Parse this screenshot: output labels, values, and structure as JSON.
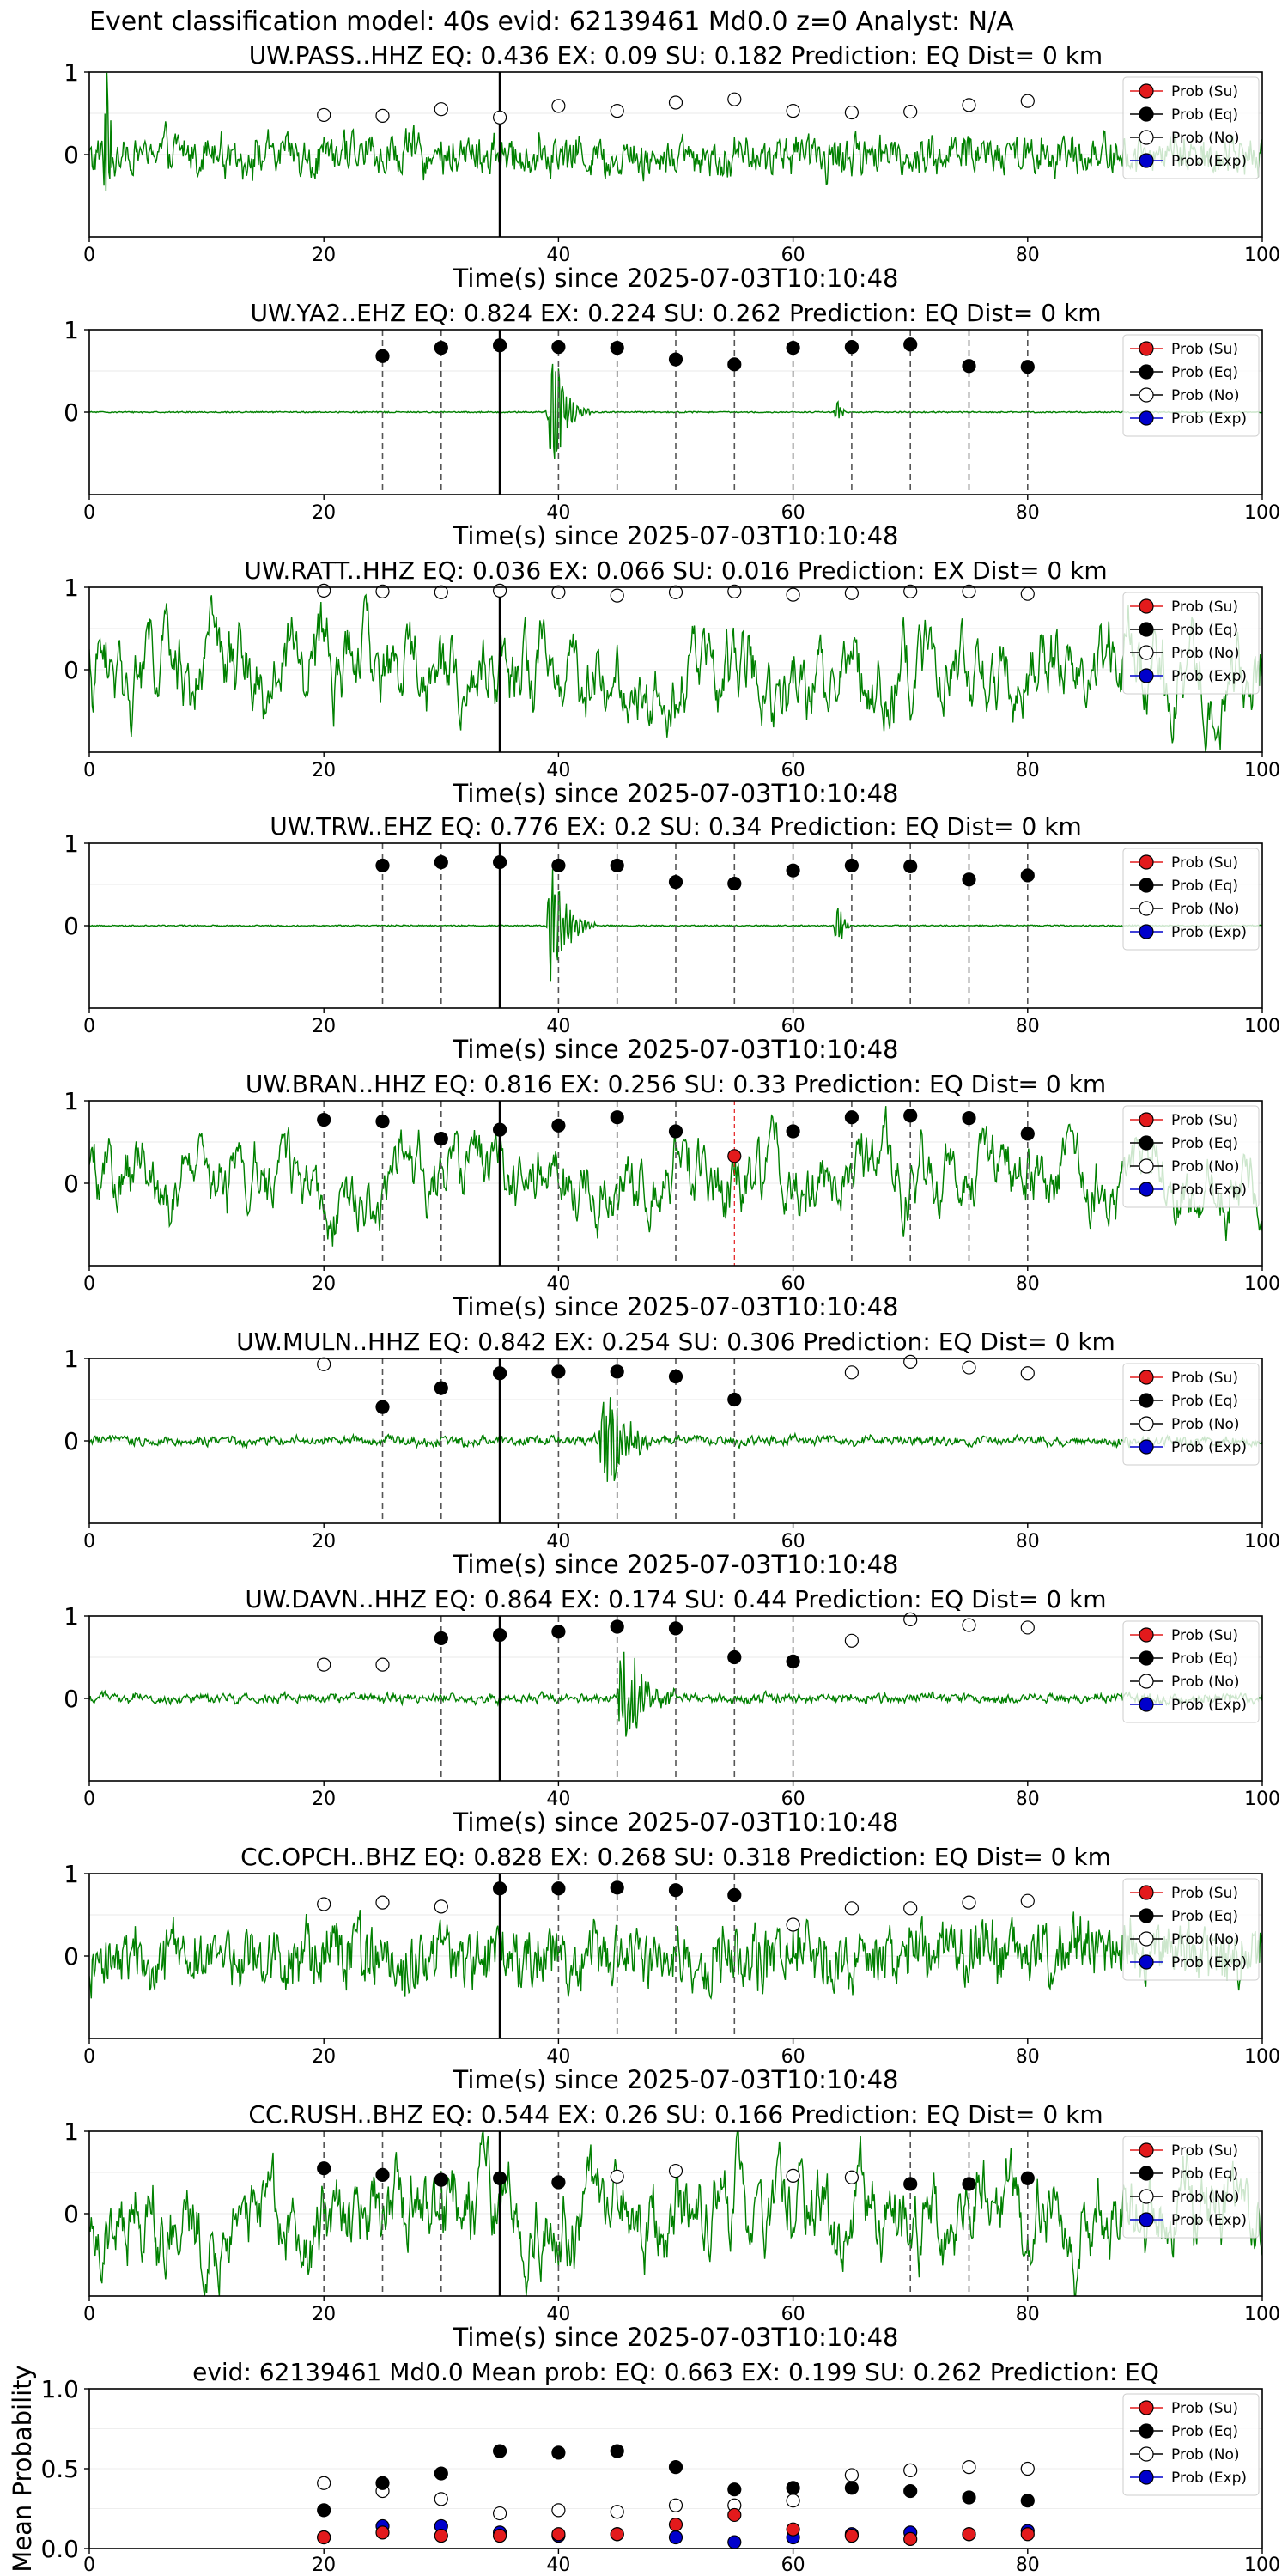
{
  "header": {
    "title": "Event classification model: 40s evid: 62139461 Md0.0 z=0 Analyst: N/A"
  },
  "legend": [
    "Prob (Su)",
    "Prob (Eq)",
    "Prob (No)",
    "Prob (Exp)"
  ],
  "colors": {
    "su": "#e31a1c",
    "eq": "#000000",
    "no": "#ffffff",
    "exp": "#0000cc",
    "waveform": "#008000",
    "cursor": "#000000",
    "window": "#555555"
  },
  "chart_data": [
    {
      "type": "line",
      "station": "UW.PASS..HHZ",
      "title": "UW.PASS..HHZ   EQ: 0.436  EX: 0.09  SU: 0.182   Prediction: EQ    Dist= 0 km",
      "xlabel": "Time(s) since 2025-07-03T10:10:48",
      "xlim": [
        0,
        100
      ],
      "ylim": [
        -1,
        1
      ],
      "xticks": [
        "0",
        "20",
        "40",
        "60",
        "80",
        "100"
      ],
      "yticks": [
        "1",
        "0"
      ],
      "cursor_x": 35,
      "window_lines": [],
      "su_lines": [],
      "waveform": {
        "amplitude": 0.42,
        "style": "noise",
        "spike_at": 1.5
      },
      "points": [
        {
          "x": 20,
          "y": 0.48,
          "cls": "no"
        },
        {
          "x": 25,
          "y": 0.47,
          "cls": "no"
        },
        {
          "x": 30,
          "y": 0.55,
          "cls": "no"
        },
        {
          "x": 35,
          "y": 0.45,
          "cls": "no"
        },
        {
          "x": 40,
          "y": 0.59,
          "cls": "no"
        },
        {
          "x": 45,
          "y": 0.53,
          "cls": "no"
        },
        {
          "x": 50,
          "y": 0.63,
          "cls": "no"
        },
        {
          "x": 55,
          "y": 0.67,
          "cls": "no"
        },
        {
          "x": 60,
          "y": 0.53,
          "cls": "no"
        },
        {
          "x": 65,
          "y": 0.51,
          "cls": "no"
        },
        {
          "x": 70,
          "y": 0.52,
          "cls": "no"
        },
        {
          "x": 75,
          "y": 0.6,
          "cls": "no"
        },
        {
          "x": 80,
          "y": 0.65,
          "cls": "no"
        }
      ]
    },
    {
      "type": "line",
      "station": "UW.YA2..EHZ",
      "title": "UW.YA2..EHZ   EQ: 0.824  EX: 0.224  SU: 0.262   Prediction: EQ    Dist= 0 km",
      "xlabel": "Time(s) since 2025-07-03T10:10:48",
      "xlim": [
        0,
        100
      ],
      "ylim": [
        -1,
        1
      ],
      "xticks": [
        "0",
        "20",
        "40",
        "60",
        "80",
        "100"
      ],
      "yticks": [
        "1",
        "0"
      ],
      "cursor_x": 35,
      "window_lines": [
        25,
        30,
        40,
        45,
        50,
        55,
        60,
        65,
        70,
        75,
        80
      ],
      "su_lines": [],
      "waveform": {
        "amplitude": 0.008,
        "style": "quiet",
        "events": [
          {
            "x": 39.5,
            "amp": 1.0,
            "width": 1.6
          },
          {
            "x": 64,
            "amp": 0.25,
            "width": 0.4
          }
        ]
      },
      "points": [
        {
          "x": 25,
          "y": 0.68,
          "cls": "eq"
        },
        {
          "x": 30,
          "y": 0.78,
          "cls": "eq"
        },
        {
          "x": 35,
          "y": 0.81,
          "cls": "eq"
        },
        {
          "x": 40,
          "y": 0.79,
          "cls": "eq"
        },
        {
          "x": 45,
          "y": 0.78,
          "cls": "eq"
        },
        {
          "x": 50,
          "y": 0.64,
          "cls": "eq"
        },
        {
          "x": 55,
          "y": 0.58,
          "cls": "eq"
        },
        {
          "x": 60,
          "y": 0.78,
          "cls": "eq"
        },
        {
          "x": 65,
          "y": 0.79,
          "cls": "eq"
        },
        {
          "x": 70,
          "y": 0.82,
          "cls": "eq"
        },
        {
          "x": 75,
          "y": 0.56,
          "cls": "eq"
        },
        {
          "x": 80,
          "y": 0.55,
          "cls": "eq"
        }
      ]
    },
    {
      "type": "line",
      "station": "UW.RATT..HHZ",
      "title": "UW.RATT..HHZ   EQ: 0.036  EX: 0.066  SU: 0.016   Prediction: EX    Dist= 0 km",
      "xlabel": "Time(s) since 2025-07-03T10:10:48",
      "xlim": [
        0,
        100
      ],
      "ylim": [
        -1,
        1
      ],
      "xticks": [
        "0",
        "20",
        "40",
        "60",
        "80",
        "100"
      ],
      "yticks": [
        "1",
        "0"
      ],
      "cursor_x": 35,
      "window_lines": [],
      "su_lines": [],
      "waveform": {
        "amplitude": 0.6,
        "style": "wave"
      },
      "points": [
        {
          "x": 20,
          "y": 0.96,
          "cls": "no"
        },
        {
          "x": 25,
          "y": 0.95,
          "cls": "no"
        },
        {
          "x": 30,
          "y": 0.94,
          "cls": "no"
        },
        {
          "x": 35,
          "y": 0.96,
          "cls": "no"
        },
        {
          "x": 40,
          "y": 0.94,
          "cls": "no"
        },
        {
          "x": 45,
          "y": 0.9,
          "cls": "no"
        },
        {
          "x": 50,
          "y": 0.94,
          "cls": "no"
        },
        {
          "x": 55,
          "y": 0.95,
          "cls": "no"
        },
        {
          "x": 60,
          "y": 0.91,
          "cls": "no"
        },
        {
          "x": 65,
          "y": 0.93,
          "cls": "no"
        },
        {
          "x": 70,
          "y": 0.95,
          "cls": "no"
        },
        {
          "x": 75,
          "y": 0.95,
          "cls": "no"
        },
        {
          "x": 80,
          "y": 0.92,
          "cls": "no"
        }
      ]
    },
    {
      "type": "line",
      "station": "UW.TRW..EHZ",
      "title": "UW.TRW..EHZ   EQ: 0.776  EX: 0.2  SU: 0.34   Prediction: EQ    Dist= 0 km",
      "xlabel": "Time(s) since 2025-07-03T10:10:48",
      "xlim": [
        0,
        100
      ],
      "ylim": [
        -1,
        1
      ],
      "xticks": [
        "0",
        "20",
        "40",
        "60",
        "80",
        "100"
      ],
      "yticks": [
        "1",
        "0"
      ],
      "cursor_x": 35,
      "window_lines": [
        25,
        30,
        40,
        45,
        50,
        55,
        60,
        65,
        70,
        75,
        80
      ],
      "su_lines": [],
      "waveform": {
        "amplitude": 0.008,
        "style": "quiet",
        "events": [
          {
            "x": 39.5,
            "amp": 1.0,
            "width": 1.8
          },
          {
            "x": 64,
            "amp": 0.4,
            "width": 0.5
          }
        ]
      },
      "points": [
        {
          "x": 25,
          "y": 0.73,
          "cls": "eq"
        },
        {
          "x": 30,
          "y": 0.77,
          "cls": "eq"
        },
        {
          "x": 35,
          "y": 0.77,
          "cls": "eq"
        },
        {
          "x": 40,
          "y": 0.73,
          "cls": "eq"
        },
        {
          "x": 45,
          "y": 0.73,
          "cls": "eq"
        },
        {
          "x": 50,
          "y": 0.53,
          "cls": "eq"
        },
        {
          "x": 55,
          "y": 0.51,
          "cls": "eq"
        },
        {
          "x": 60,
          "y": 0.67,
          "cls": "eq"
        },
        {
          "x": 65,
          "y": 0.73,
          "cls": "eq"
        },
        {
          "x": 70,
          "y": 0.72,
          "cls": "eq"
        },
        {
          "x": 75,
          "y": 0.56,
          "cls": "eq"
        },
        {
          "x": 80,
          "y": 0.61,
          "cls": "eq"
        }
      ]
    },
    {
      "type": "line",
      "station": "UW.BRAN..HHZ",
      "title": "UW.BRAN..HHZ   EQ: 0.816  EX: 0.256  SU: 0.33   Prediction: EQ    Dist= 0 km",
      "xlabel": "Time(s) since 2025-07-03T10:10:48",
      "xlim": [
        0,
        100
      ],
      "ylim": [
        -1,
        1
      ],
      "xticks": [
        "0",
        "20",
        "40",
        "60",
        "80",
        "100"
      ],
      "yticks": [
        "1",
        "0"
      ],
      "cursor_x": 35,
      "window_lines": [
        20,
        25,
        30,
        40,
        45,
        50,
        60,
        65,
        70,
        75,
        80
      ],
      "su_lines": [
        55
      ],
      "waveform": {
        "amplitude": 0.5,
        "style": "wave"
      },
      "points": [
        {
          "x": 20,
          "y": 0.77,
          "cls": "eq"
        },
        {
          "x": 25,
          "y": 0.75,
          "cls": "eq"
        },
        {
          "x": 30,
          "y": 0.54,
          "cls": "eq"
        },
        {
          "x": 35,
          "y": 0.65,
          "cls": "eq"
        },
        {
          "x": 40,
          "y": 0.7,
          "cls": "eq"
        },
        {
          "x": 45,
          "y": 0.8,
          "cls": "eq"
        },
        {
          "x": 50,
          "y": 0.63,
          "cls": "eq"
        },
        {
          "x": 55,
          "y": 0.33,
          "cls": "su"
        },
        {
          "x": 60,
          "y": 0.63,
          "cls": "eq"
        },
        {
          "x": 65,
          "y": 0.8,
          "cls": "eq"
        },
        {
          "x": 70,
          "y": 0.82,
          "cls": "eq"
        },
        {
          "x": 75,
          "y": 0.79,
          "cls": "eq"
        },
        {
          "x": 80,
          "y": 0.6,
          "cls": "eq"
        }
      ]
    },
    {
      "type": "line",
      "station": "UW.MULN..HHZ",
      "title": "UW.MULN..HHZ   EQ: 0.842  EX: 0.254  SU: 0.306   Prediction: EQ    Dist= 0 km",
      "xlabel": "Time(s) since 2025-07-03T10:10:48",
      "xlim": [
        0,
        100
      ],
      "ylim": [
        -1,
        1
      ],
      "xticks": [
        "0",
        "20",
        "40",
        "60",
        "80",
        "100"
      ],
      "yticks": [
        "1",
        "0"
      ],
      "cursor_x": 35,
      "window_lines": [
        25,
        30,
        40,
        45,
        50,
        55
      ],
      "su_lines": [],
      "waveform": {
        "amplitude": 0.1,
        "style": "noise",
        "events": [
          {
            "x": 44,
            "amp": 0.9,
            "width": 2.5
          }
        ]
      },
      "points": [
        {
          "x": 20,
          "y": 0.93,
          "cls": "no"
        },
        {
          "x": 25,
          "y": 0.41,
          "cls": "eq"
        },
        {
          "x": 30,
          "y": 0.64,
          "cls": "eq"
        },
        {
          "x": 35,
          "y": 0.82,
          "cls": "eq"
        },
        {
          "x": 40,
          "y": 0.84,
          "cls": "eq"
        },
        {
          "x": 45,
          "y": 0.84,
          "cls": "eq"
        },
        {
          "x": 50,
          "y": 0.78,
          "cls": "eq"
        },
        {
          "x": 55,
          "y": 0.5,
          "cls": "eq"
        },
        {
          "x": 65,
          "y": 0.83,
          "cls": "no"
        },
        {
          "x": 70,
          "y": 0.96,
          "cls": "no"
        },
        {
          "x": 75,
          "y": 0.89,
          "cls": "no"
        },
        {
          "x": 80,
          "y": 0.82,
          "cls": "no"
        }
      ]
    },
    {
      "type": "line",
      "station": "UW.DAVN..HHZ",
      "title": "UW.DAVN..HHZ   EQ: 0.864  EX: 0.174  SU: 0.44   Prediction: EQ    Dist= 0 km",
      "xlabel": "Time(s) since 2025-07-03T10:10:48",
      "xlim": [
        0,
        100
      ],
      "ylim": [
        -1,
        1
      ],
      "xticks": [
        "0",
        "20",
        "40",
        "60",
        "80",
        "100"
      ],
      "yticks": [
        "1",
        "0"
      ],
      "cursor_x": 35,
      "window_lines": [
        30,
        40,
        45,
        50,
        55,
        60
      ],
      "su_lines": [],
      "waveform": {
        "amplitude": 0.1,
        "style": "noise",
        "events": [
          {
            "x": 45.5,
            "amp": 0.9,
            "width": 2.5
          }
        ]
      },
      "points": [
        {
          "x": 20,
          "y": 0.41,
          "cls": "no"
        },
        {
          "x": 25,
          "y": 0.41,
          "cls": "no"
        },
        {
          "x": 30,
          "y": 0.73,
          "cls": "eq"
        },
        {
          "x": 35,
          "y": 0.77,
          "cls": "eq"
        },
        {
          "x": 40,
          "y": 0.81,
          "cls": "eq"
        },
        {
          "x": 45,
          "y": 0.87,
          "cls": "eq"
        },
        {
          "x": 50,
          "y": 0.85,
          "cls": "eq"
        },
        {
          "x": 55,
          "y": 0.5,
          "cls": "eq"
        },
        {
          "x": 60,
          "y": 0.45,
          "cls": "eq"
        },
        {
          "x": 65,
          "y": 0.7,
          "cls": "no"
        },
        {
          "x": 70,
          "y": 0.96,
          "cls": "no"
        },
        {
          "x": 75,
          "y": 0.89,
          "cls": "no"
        },
        {
          "x": 80,
          "y": 0.86,
          "cls": "no"
        }
      ]
    },
    {
      "type": "line",
      "station": "CC.OPCH..BHZ",
      "title": "CC.OPCH..BHZ   EQ: 0.828  EX: 0.268  SU: 0.318   Prediction: EQ    Dist= 0 km",
      "xlabel": "Time(s) since 2025-07-03T10:10:48",
      "xlim": [
        0,
        100
      ],
      "ylim": [
        -1,
        1
      ],
      "xticks": [
        "0",
        "20",
        "40",
        "60",
        "80",
        "100"
      ],
      "yticks": [
        "1",
        "0"
      ],
      "cursor_x": 35,
      "window_lines": [
        40,
        45,
        50,
        55
      ],
      "su_lines": [],
      "waveform": {
        "amplitude": 0.65,
        "style": "noise"
      },
      "points": [
        {
          "x": 20,
          "y": 0.63,
          "cls": "no"
        },
        {
          "x": 25,
          "y": 0.65,
          "cls": "no"
        },
        {
          "x": 30,
          "y": 0.6,
          "cls": "no"
        },
        {
          "x": 35,
          "y": 0.82,
          "cls": "eq"
        },
        {
          "x": 40,
          "y": 0.82,
          "cls": "eq"
        },
        {
          "x": 45,
          "y": 0.83,
          "cls": "eq"
        },
        {
          "x": 50,
          "y": 0.8,
          "cls": "eq"
        },
        {
          "x": 55,
          "y": 0.74,
          "cls": "eq"
        },
        {
          "x": 60,
          "y": 0.38,
          "cls": "no"
        },
        {
          "x": 65,
          "y": 0.58,
          "cls": "no"
        },
        {
          "x": 70,
          "y": 0.58,
          "cls": "no"
        },
        {
          "x": 75,
          "y": 0.65,
          "cls": "no"
        },
        {
          "x": 80,
          "y": 0.67,
          "cls": "no"
        }
      ]
    },
    {
      "type": "line",
      "station": "CC.RUSH..BHZ",
      "title": "CC.RUSH..BHZ   EQ: 0.544  EX: 0.26  SU: 0.166   Prediction: EQ    Dist= 0 km",
      "xlabel": "Time(s) since 2025-07-03T10:10:48",
      "xlim": [
        0,
        100
      ],
      "ylim": [
        -1,
        1
      ],
      "xticks": [
        "0",
        "20",
        "40",
        "60",
        "80",
        "100"
      ],
      "yticks": [
        "1",
        "0"
      ],
      "cursor_x": 35,
      "window_lines": [
        20,
        25,
        30,
        40,
        70,
        75,
        80
      ],
      "su_lines": [],
      "waveform": {
        "amplitude": 0.65,
        "style": "wave"
      },
      "points": [
        {
          "x": 20,
          "y": 0.55,
          "cls": "eq"
        },
        {
          "x": 25,
          "y": 0.47,
          "cls": "eq"
        },
        {
          "x": 30,
          "y": 0.41,
          "cls": "eq"
        },
        {
          "x": 35,
          "y": 0.43,
          "cls": "eq"
        },
        {
          "x": 40,
          "y": 0.38,
          "cls": "eq"
        },
        {
          "x": 45,
          "y": 0.45,
          "cls": "no"
        },
        {
          "x": 50,
          "y": 0.52,
          "cls": "no"
        },
        {
          "x": 60,
          "y": 0.46,
          "cls": "no"
        },
        {
          "x": 65,
          "y": 0.44,
          "cls": "no"
        },
        {
          "x": 70,
          "y": 0.36,
          "cls": "eq"
        },
        {
          "x": 75,
          "y": 0.36,
          "cls": "eq"
        },
        {
          "x": 80,
          "y": 0.43,
          "cls": "eq"
        }
      ]
    },
    {
      "type": "scatter",
      "station": "mean",
      "title": "evid: 62139461  Md0.0   Mean prob:   EQ: 0.663  EX: 0.199  SU: 0.262   Prediction: EQ",
      "xlabel": "",
      "ylabel": "Mean Probability",
      "xlim": [
        0,
        100
      ],
      "ylim": [
        0,
        1
      ],
      "xticks": [
        "0",
        "20",
        "40",
        "60",
        "80",
        "100"
      ],
      "yticks": [
        "1.0",
        "0.5",
        "0.0"
      ],
      "x": [
        20,
        25,
        30,
        35,
        40,
        45,
        50,
        55,
        60,
        65,
        70,
        75,
        80
      ],
      "series": [
        {
          "cls": "no",
          "values": [
            0.41,
            0.36,
            0.31,
            0.22,
            0.24,
            0.23,
            0.27,
            0.27,
            0.3,
            0.46,
            0.49,
            0.51,
            0.5
          ]
        },
        {
          "cls": "eq",
          "values": [
            0.24,
            0.41,
            0.47,
            0.61,
            0.6,
            0.61,
            0.51,
            0.37,
            0.38,
            0.38,
            0.36,
            0.32,
            0.3
          ]
        },
        {
          "cls": "exp",
          "values": [
            0.07,
            0.14,
            0.14,
            0.1,
            0.08,
            0.09,
            0.07,
            0.04,
            0.07,
            0.09,
            0.1,
            0.09,
            0.11
          ]
        },
        {
          "cls": "su",
          "values": [
            0.07,
            0.1,
            0.08,
            0.08,
            0.09,
            0.09,
            0.15,
            0.21,
            0.12,
            0.08,
            0.06,
            0.09,
            0.09
          ]
        }
      ]
    }
  ]
}
